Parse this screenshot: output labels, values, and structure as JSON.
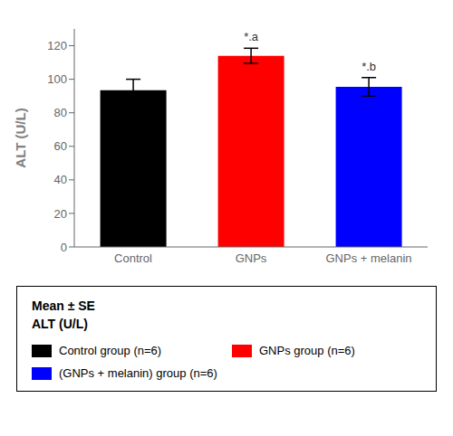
{
  "chart_data": {
    "type": "bar",
    "categories": [
      "Control",
      "GNPs",
      "GNPs + melanin"
    ],
    "values": [
      93.5,
      114.0,
      95.5
    ],
    "errors": [
      6.5,
      4.5,
      5.5
    ],
    "colors": [
      "#000000",
      "#ff0000",
      "#0000ff"
    ],
    "ylabel": "ALT (U/L)",
    "ylim": [
      0,
      130
    ],
    "yticks": [
      0,
      20,
      40,
      60,
      80,
      100,
      120
    ],
    "annotations": [
      null,
      "*.a",
      "*.b"
    ],
    "legend_title": "Mean ± SE\nALT (U/L)",
    "legend_entries": [
      {
        "name": "Control group (n=6)",
        "color": "#000000"
      },
      {
        "name": "GNPs group (n=6)",
        "color": "#ff0000"
      },
      {
        "name": "(GNPs + melanin) group (n=6)",
        "color": "#0000ff"
      }
    ],
    "grid": false
  }
}
